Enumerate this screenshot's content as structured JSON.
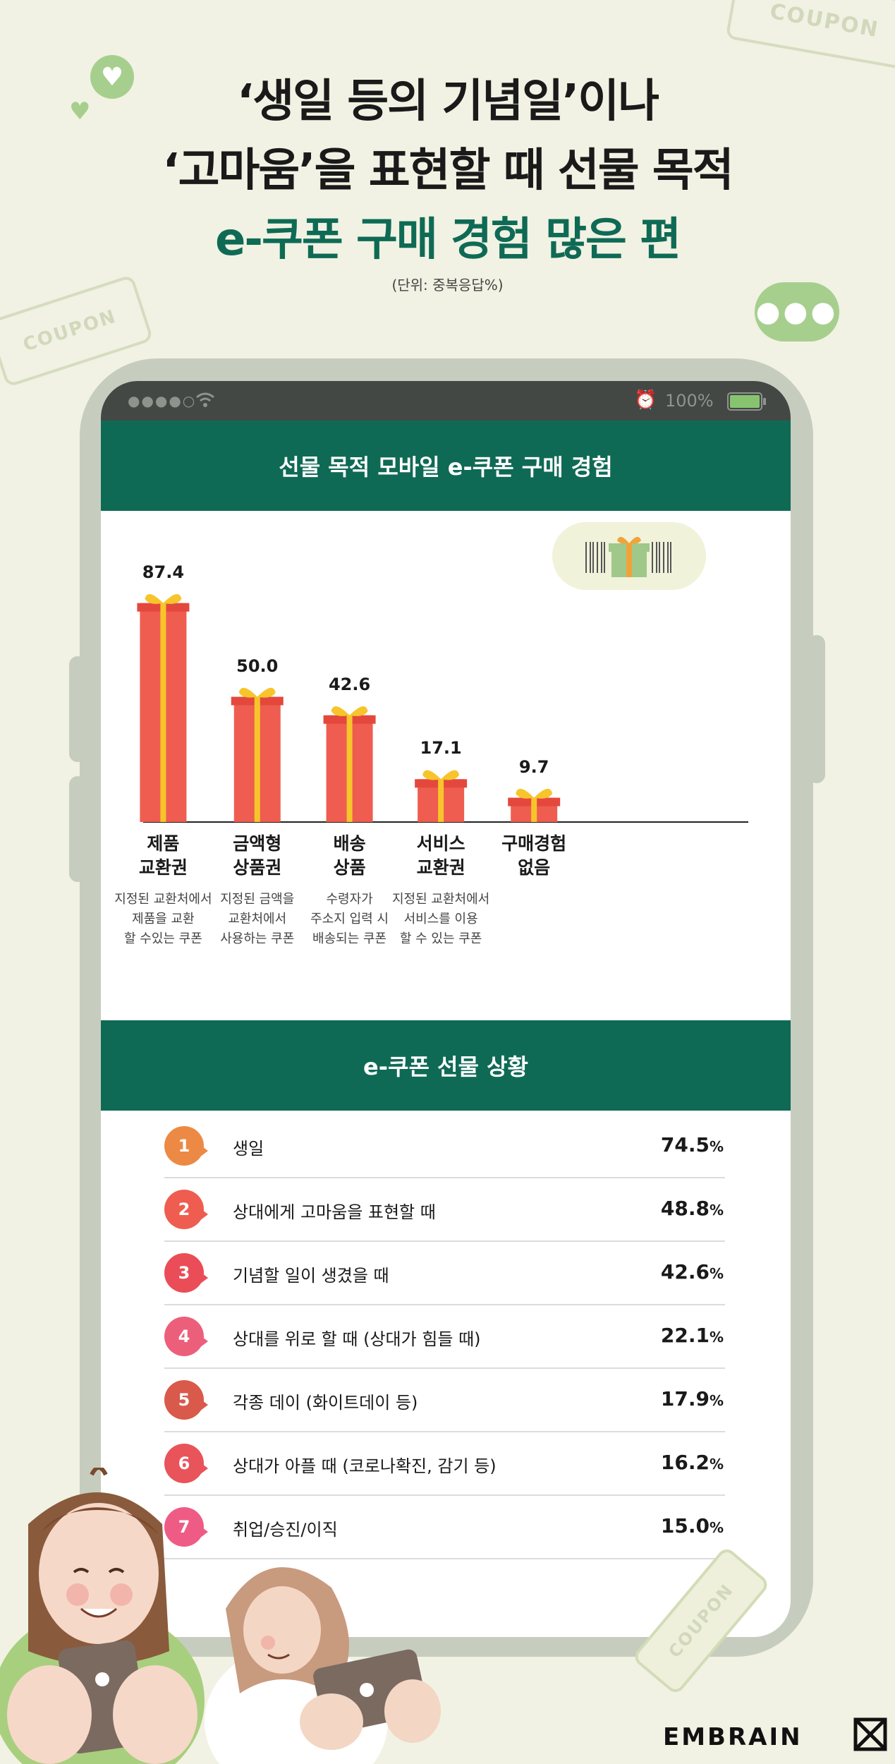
{
  "headline": {
    "line1": "‘생일 등의 기념일’이나",
    "line2": "‘고마움’을 표현할 때 선물 목적",
    "line3": "e-쿠폰 구매 경험 많은 편"
  },
  "unit_note": "(단위: 중복응답%)",
  "decor": {
    "coupon_text": "COUPON"
  },
  "status_bar": {
    "dots": "●●●●○",
    "battery": "100%"
  },
  "chart_section": {
    "title": "선물 목적 모바일 e-쿠폰 구매 경험"
  },
  "chart_data": {
    "type": "bar",
    "title": "선물 목적 모바일 e-쿠폰 구매 경험",
    "categories": [
      "제품\n교환권",
      "금액형\n상품권",
      "배송\n상품",
      "서비스\n교환권",
      "구매경험\n없음"
    ],
    "values": [
      87.4,
      50.0,
      42.6,
      17.1,
      9.7
    ],
    "value_labels": [
      "87.4",
      "50.0",
      "42.6",
      "17.1",
      "9.7"
    ],
    "descriptions": [
      "지정된 교환처에서\n제품을 교환\n할 수있는 쿠폰",
      "지정된 금액을\n교환처에서\n사용하는 쿠폰",
      "수령자가\n주소지 입력 시\n배송되는 쿠폰",
      "지정된 교환처에서\n서비스를 이용\n할 수 있는 쿠폰",
      ""
    ],
    "ylim": [
      0,
      100
    ],
    "xlabel": "",
    "ylabel": "",
    "colors": {
      "bar": "#ee5d4f",
      "ribbon": "#f7c52b"
    }
  },
  "ranking_section": {
    "title": "e-쿠폰 선물 상황",
    "unit": "%",
    "items": [
      {
        "rank": "1",
        "label": "생일",
        "value": "74.5",
        "color": "#ec8a45"
      },
      {
        "rank": "2",
        "label": "상대에게 고마움을 표현할 때",
        "value": "48.8",
        "color": "#ee5d4f"
      },
      {
        "rank": "3",
        "label": "기념할 일이 생겼을 때",
        "value": "42.6",
        "color": "#ea4d57"
      },
      {
        "rank": "4",
        "label": "상대를 위로 할 때 (상대가 힘들 때)",
        "value": "22.1",
        "color": "#ec5f7a"
      },
      {
        "rank": "5",
        "label": "각종 데이 (화이트데이 등)",
        "value": "17.9",
        "color": "#d9594b"
      },
      {
        "rank": "6",
        "label": "상대가 아플 때 (코로나확진, 감기 등)",
        "value": "16.2",
        "color": "#e9535a"
      },
      {
        "rank": "7",
        "label": "취업/승진/이직",
        "value": "15.0",
        "color": "#ee5c86"
      }
    ]
  },
  "brand": "EMBRAIN"
}
